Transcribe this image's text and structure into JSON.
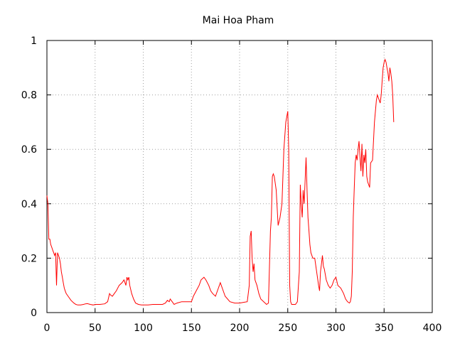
{
  "chart_data": {
    "type": "line",
    "title": "Mai Hoa Pham",
    "xlabel": "",
    "ylabel": "",
    "xlim": [
      0,
      400
    ],
    "ylim": [
      0,
      1
    ],
    "xticks": [
      0,
      50,
      100,
      150,
      200,
      250,
      300,
      350,
      400
    ],
    "yticks": [
      0,
      0.2,
      0.4,
      0.6,
      0.8,
      1
    ],
    "xtick_labels": [
      "0",
      "50",
      "100",
      "150",
      "200",
      "250",
      "300",
      "350",
      "400"
    ],
    "ytick_labels": [
      "0",
      "0.2",
      "0.4",
      "0.6",
      "0.8",
      "1"
    ],
    "grid": true,
    "series_color": "#ff0000",
    "series": [
      {
        "x": [
          0,
          1,
          2,
          3,
          4,
          5,
          6,
          7,
          8,
          9,
          10,
          11,
          12,
          13,
          14,
          15,
          16,
          17,
          18,
          19,
          20,
          22,
          25,
          28,
          30,
          32,
          35,
          38,
          40,
          42,
          45,
          48,
          50,
          55,
          60,
          63,
          65,
          66,
          68,
          70,
          72,
          75,
          78,
          80,
          82,
          83,
          84,
          85,
          86,
          88,
          90,
          92,
          95,
          98,
          100,
          105,
          110,
          115,
          120,
          123,
          125,
          127,
          128,
          130,
          132,
          135,
          140,
          145,
          148,
          150,
          152,
          155,
          158,
          160,
          163,
          165,
          168,
          170,
          172,
          175,
          178,
          180,
          182,
          185,
          190,
          195,
          200,
          205,
          208,
          210,
          211,
          212,
          213,
          214,
          215,
          216,
          218,
          220,
          222,
          225,
          228,
          230,
          232,
          233,
          234,
          235,
          236,
          238,
          240,
          242,
          244,
          246,
          248,
          249,
          250,
          251,
          252,
          253,
          254,
          256,
          258,
          260,
          262,
          263,
          264,
          265,
          266,
          267,
          268,
          269,
          270,
          271,
          272,
          273,
          274,
          276,
          278,
          280,
          282,
          283,
          284,
          285,
          286,
          287,
          288,
          290,
          292,
          294,
          296,
          298,
          300,
          302,
          305,
          308,
          310,
          312,
          314,
          315,
          316,
          317,
          318,
          319,
          320,
          321,
          322,
          323,
          324,
          325,
          326,
          327,
          328,
          329,
          330,
          331,
          332,
          333,
          334,
          335,
          336,
          338,
          340,
          342,
          343,
          344,
          345,
          346,
          347,
          348,
          349,
          350,
          351,
          352,
          353,
          354,
          355,
          356,
          357,
          358,
          359,
          360
        ],
        "values": [
          0.43,
          0.4,
          0.27,
          0.27,
          0.25,
          0.24,
          0.23,
          0.22,
          0.21,
          0.22,
          0.1,
          0.22,
          0.21,
          0.2,
          0.18,
          0.15,
          0.13,
          0.11,
          0.09,
          0.08,
          0.07,
          0.06,
          0.045,
          0.035,
          0.03,
          0.028,
          0.028,
          0.03,
          0.032,
          0.033,
          0.03,
          0.028,
          0.03,
          0.03,
          0.032,
          0.04,
          0.07,
          0.065,
          0.06,
          0.07,
          0.08,
          0.1,
          0.11,
          0.12,
          0.1,
          0.13,
          0.12,
          0.13,
          0.1,
          0.07,
          0.05,
          0.035,
          0.03,
          0.028,
          0.028,
          0.028,
          0.03,
          0.03,
          0.03,
          0.035,
          0.045,
          0.04,
          0.05,
          0.04,
          0.03,
          0.035,
          0.04,
          0.04,
          0.04,
          0.04,
          0.06,
          0.08,
          0.1,
          0.12,
          0.13,
          0.12,
          0.1,
          0.08,
          0.07,
          0.06,
          0.09,
          0.11,
          0.09,
          0.06,
          0.04,
          0.035,
          0.035,
          0.038,
          0.04,
          0.1,
          0.28,
          0.3,
          0.2,
          0.15,
          0.18,
          0.12,
          0.1,
          0.07,
          0.05,
          0.04,
          0.03,
          0.035,
          0.3,
          0.35,
          0.5,
          0.51,
          0.5,
          0.45,
          0.32,
          0.35,
          0.4,
          0.6,
          0.7,
          0.72,
          0.74,
          0.6,
          0.1,
          0.04,
          0.03,
          0.03,
          0.03,
          0.04,
          0.15,
          0.47,
          0.4,
          0.35,
          0.45,
          0.4,
          0.48,
          0.57,
          0.45,
          0.35,
          0.3,
          0.25,
          0.22,
          0.2,
          0.2,
          0.15,
          0.1,
          0.08,
          0.15,
          0.18,
          0.21,
          0.17,
          0.16,
          0.12,
          0.1,
          0.09,
          0.1,
          0.12,
          0.13,
          0.1,
          0.09,
          0.07,
          0.05,
          0.04,
          0.035,
          0.04,
          0.06,
          0.15,
          0.35,
          0.45,
          0.55,
          0.58,
          0.56,
          0.6,
          0.63,
          0.57,
          0.52,
          0.62,
          0.5,
          0.58,
          0.55,
          0.6,
          0.5,
          0.48,
          0.47,
          0.46,
          0.55,
          0.56,
          0.7,
          0.78,
          0.8,
          0.79,
          0.78,
          0.77,
          0.8,
          0.85,
          0.9,
          0.92,
          0.93,
          0.92,
          0.9,
          0.88,
          0.85,
          0.9,
          0.88,
          0.85,
          0.8,
          0.7
        ]
      }
    ]
  }
}
